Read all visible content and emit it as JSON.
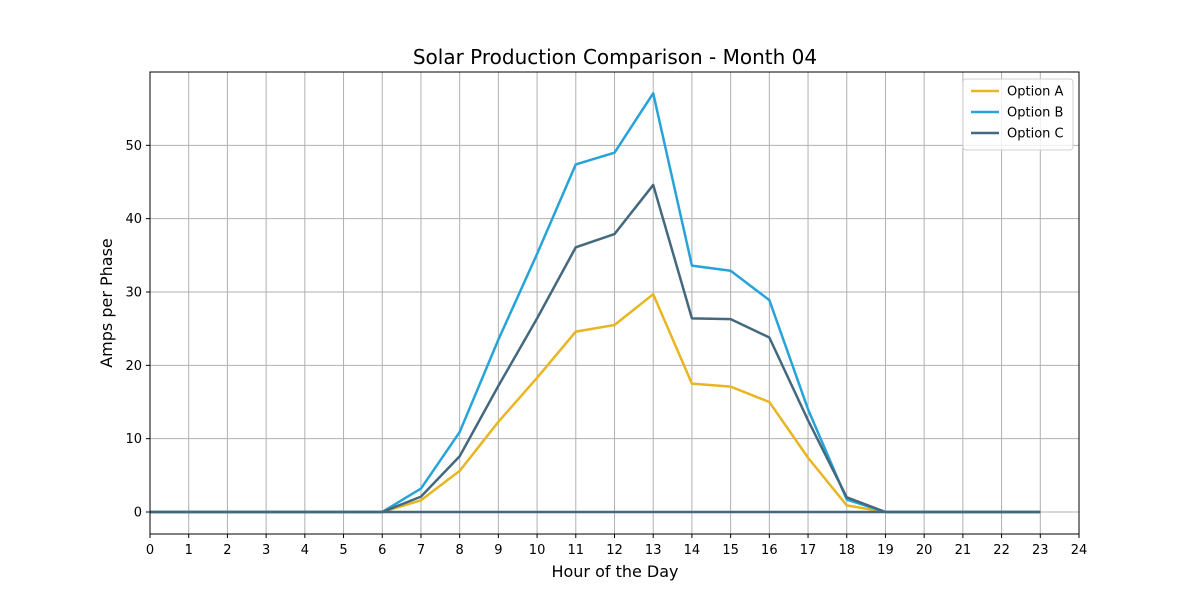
{
  "chart_data": {
    "type": "line",
    "title": "Solar Production Comparison - Month 04",
    "xlabel": "Hour of the Day",
    "ylabel": "Amps per Phase",
    "xlim": [
      0,
      24
    ],
    "ylim": [
      -3,
      60
    ],
    "xticks": [
      0,
      1,
      2,
      3,
      4,
      5,
      6,
      7,
      8,
      9,
      10,
      11,
      12,
      13,
      14,
      15,
      16,
      17,
      18,
      19,
      20,
      21,
      22,
      23,
      24
    ],
    "yticks": [
      0,
      10,
      20,
      30,
      40,
      50
    ],
    "grid": true,
    "legend_position": "top-right",
    "x": [
      0,
      1,
      2,
      3,
      4,
      5,
      6,
      7,
      8,
      9,
      10,
      11,
      12,
      13,
      14,
      15,
      16,
      17,
      18,
      19,
      20,
      21,
      22,
      23
    ],
    "series": [
      {
        "name": "Option A",
        "color": "#e8b623",
        "values": [
          0,
          0,
          0,
          0,
          0,
          0,
          0,
          1.6,
          5.6,
          12.3,
          18.3,
          24.6,
          25.5,
          29.7,
          17.5,
          17.1,
          15.0,
          7.4,
          0.9,
          0,
          0,
          0,
          0,
          0
        ]
      },
      {
        "name": "Option B",
        "color": "#26a3d9",
        "values": [
          0,
          0,
          0,
          0,
          0,
          0,
          0,
          3.2,
          10.9,
          23.5,
          35.2,
          47.4,
          49.0,
          57.1,
          33.6,
          32.9,
          28.9,
          14.0,
          1.7,
          0,
          0,
          0,
          0,
          0
        ]
      },
      {
        "name": "Option C",
        "color": "#44697f",
        "values": [
          0,
          0,
          0,
          0,
          0,
          0,
          0,
          2.1,
          7.6,
          17.2,
          26.4,
          36.1,
          37.9,
          44.6,
          26.4,
          26.3,
          23.8,
          12.5,
          2.0,
          0,
          0,
          0,
          0,
          0
        ]
      }
    ]
  }
}
